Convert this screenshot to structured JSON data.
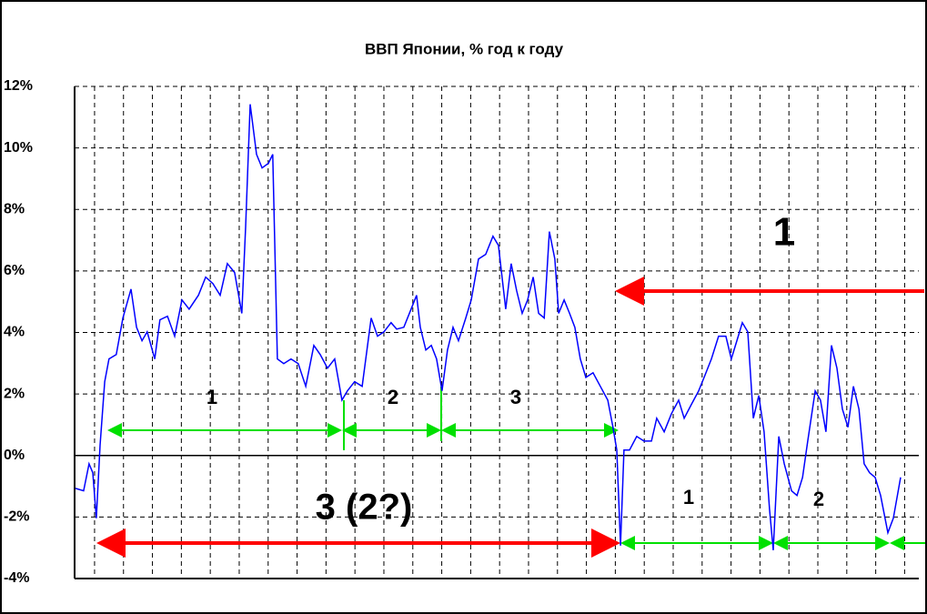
{
  "chart_data": {
    "type": "line",
    "title": "ВВП Японии, % год к году",
    "x": [
      1973.78,
      1974.06,
      1974.25,
      1974.38,
      1974.5,
      1974.63,
      1974.79,
      1974.94,
      1975.19,
      1975.42,
      1975.7,
      1975.89,
      1976.08,
      1976.26,
      1976.52,
      1976.7,
      1976.96,
      1977.21,
      1977.46,
      1977.71,
      1978.03,
      1978.28,
      1978.53,
      1978.78,
      1979.03,
      1979.28,
      1979.53,
      1979.66,
      1979.82,
      1980.04,
      1980.23,
      1980.45,
      1980.6,
      1980.76,
      1980.98,
      1981.23,
      1981.48,
      1981.74,
      1982.02,
      1982.24,
      1982.49,
      1982.74,
      1982.99,
      1983.18,
      1983.43,
      1983.69,
      1984.0,
      1984.22,
      1984.44,
      1984.69,
      1984.88,
      1985.13,
      1985.38,
      1985.57,
      1985.7,
      1985.89,
      1986.08,
      1986.26,
      1986.45,
      1986.64,
      1986.83,
      1987.02,
      1987.27,
      1987.46,
      1987.71,
      1987.96,
      1988.21,
      1988.4,
      1988.65,
      1988.84,
      1989.03,
      1989.22,
      1989.41,
      1989.6,
      1989.79,
      1989.98,
      1990.16,
      1990.35,
      1990.48,
      1990.67,
      1990.86,
      1991.04,
      1991.23,
      1991.42,
      1991.67,
      1991.92,
      1992.18,
      1992.36,
      1992.49,
      1992.62,
      1992.74,
      1992.93,
      1993.18,
      1993.43,
      1993.69,
      1993.87,
      1994.13,
      1994.38,
      1994.63,
      1994.82,
      1995.07,
      1995.32,
      1995.51,
      1995.76,
      1996.01,
      1996.26,
      1996.45,
      1996.64,
      1996.83,
      1997.02,
      1997.21,
      1997.4,
      1997.58,
      1997.77,
      1997.9,
      1998.09,
      1998.28,
      1998.53,
      1998.72,
      1998.91,
      1999.09,
      1999.35,
      1999.53,
      1999.72,
      1999.91,
      2000.1,
      2000.29,
      2000.48,
      2000.67,
      2000.86,
      2001.04,
      2001.23,
      2001.42,
      2001.61,
      2001.86,
      2002.05,
      2002.3
    ],
    "series": [
      {
        "color": "#0000ff",
        "values": [
          -1.07,
          -1.15,
          -0.27,
          -0.56,
          -2.04,
          0.33,
          2.4,
          3.14,
          3.28,
          4.47,
          5.41,
          4.17,
          3.73,
          4.02,
          3.14,
          4.41,
          4.53,
          3.88,
          5.06,
          4.76,
          5.21,
          5.8,
          5.59,
          5.21,
          6.24,
          5.95,
          4.62,
          7.43,
          11.42,
          9.79,
          9.35,
          9.5,
          9.79,
          3.14,
          2.99,
          3.14,
          2.99,
          2.25,
          3.58,
          3.28,
          2.84,
          3.14,
          1.8,
          2.1,
          2.4,
          2.25,
          4.47,
          3.88,
          4.02,
          4.32,
          4.11,
          4.17,
          4.76,
          5.21,
          4.17,
          3.43,
          3.58,
          3.14,
          2.1,
          3.43,
          4.17,
          3.73,
          4.47,
          5.06,
          6.39,
          6.54,
          7.13,
          6.83,
          4.76,
          6.24,
          5.36,
          4.62,
          5.06,
          5.8,
          4.62,
          4.47,
          7.28,
          6.39,
          4.62,
          5.06,
          4.62,
          4.17,
          3.14,
          2.54,
          2.69,
          2.25,
          1.8,
          0.92,
          0.18,
          -2.93,
          0.18,
          0.18,
          0.62,
          0.47,
          0.47,
          1.21,
          0.77,
          1.36,
          1.8,
          1.21,
          1.66,
          2.1,
          2.54,
          3.14,
          3.88,
          3.88,
          3.14,
          3.73,
          4.32,
          4.02,
          1.21,
          1.95,
          0.77,
          -1.75,
          -3.08,
          0.62,
          -0.27,
          -1.15,
          -1.3,
          -0.71,
          0.47,
          2.1,
          1.8,
          0.77,
          3.58,
          2.84,
          1.51,
          0.92,
          2.25,
          1.51,
          -0.27,
          -0.56,
          -0.71,
          -1.3,
          -2.51,
          -2.04,
          -0.71
        ]
      }
    ],
    "xlim": [
      1973.75,
      2002.93
    ],
    "xticks": [
      1974,
      1975,
      1976,
      1977,
      1978,
      1979,
      1980,
      1981,
      1982,
      1983,
      1984,
      1985,
      1986,
      1987,
      1988,
      1989,
      1990,
      1991,
      1992,
      1993,
      1994,
      1995,
      1996,
      1997,
      1998,
      1999,
      2000,
      2001,
      2002
    ],
    "ylim": [
      -4,
      12
    ],
    "yticks": [
      {
        "value": -4,
        "label": "-4%"
      },
      {
        "value": -2,
        "label": "-2%"
      },
      {
        "value": 0,
        "label": "0%"
      },
      {
        "value": 2,
        "label": "2%"
      },
      {
        "value": 4,
        "label": "4%"
      },
      {
        "value": 6,
        "label": "6%"
      },
      {
        "value": 8,
        "label": "8%"
      },
      {
        "value": 10,
        "label": "10%"
      },
      {
        "value": 12,
        "label": "12%"
      }
    ],
    "grid": true,
    "annotations": [
      "1",
      "2",
      "3",
      "3 (2?)",
      "1",
      "1",
      "2"
    ]
  }
}
